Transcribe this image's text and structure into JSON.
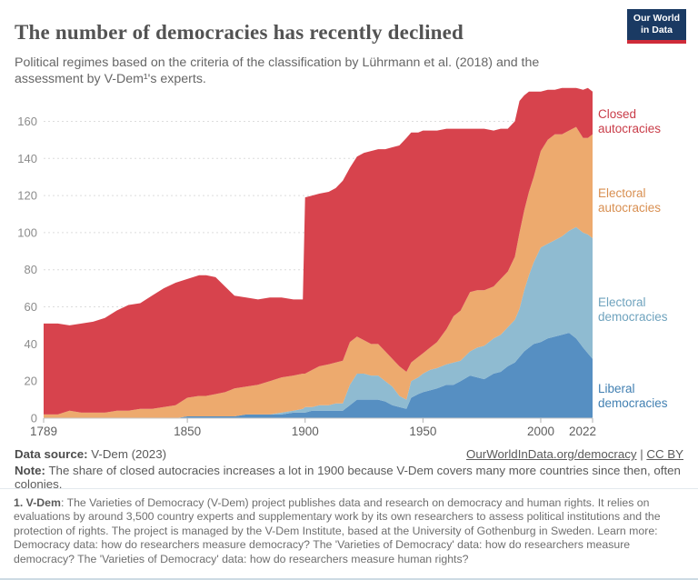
{
  "header": {
    "title": "The number of democracies has recently declined",
    "subtitle": "Political regimes based on the criteria of the classification by Lührmann et al. (2018) and the assessment by V-Dem¹'s experts.",
    "logo": {
      "line1": "Our World",
      "line2": "in Data"
    }
  },
  "chart_data": {
    "type": "area",
    "stacked": true,
    "title": "The number of democracies has recently declined",
    "xlabel": "",
    "ylabel": "",
    "grid": "dashed-horizontal",
    "legend_position": "right-edge-labels",
    "xticks": [
      1789,
      1850,
      1900,
      1950,
      2000,
      2022
    ],
    "yticks": [
      0,
      20,
      40,
      60,
      80,
      100,
      120,
      140,
      160
    ],
    "xlim": [
      1789,
      2022
    ],
    "ylim": [
      0,
      178
    ],
    "x": [
      1789,
      1795,
      1800,
      1805,
      1810,
      1815,
      1820,
      1825,
      1830,
      1835,
      1840,
      1845,
      1850,
      1855,
      1858,
      1862,
      1866,
      1870,
      1875,
      1880,
      1885,
      1890,
      1895,
      1899,
      1900,
      1903,
      1906,
      1910,
      1913,
      1916,
      1919,
      1922,
      1925,
      1928,
      1931,
      1934,
      1937,
      1940,
      1943,
      1945,
      1948,
      1950,
      1953,
      1956,
      1960,
      1963,
      1966,
      1970,
      1973,
      1976,
      1980,
      1983,
      1986,
      1989,
      1991,
      1993,
      1995,
      1997,
      2000,
      2003,
      2006,
      2009,
      2012,
      2015,
      2018,
      2020,
      2022
    ],
    "series": [
      {
        "name": "Liberal democracies",
        "label_lines": [
          "Liberal",
          "democracies"
        ],
        "color": "#568fc2",
        "label_color": "#4280b2",
        "values": [
          0,
          0,
          0,
          0,
          0,
          0,
          0,
          0,
          0,
          0,
          0,
          0,
          1,
          1,
          1,
          1,
          1,
          1,
          2,
          2,
          2,
          2,
          3,
          3,
          3,
          4,
          4,
          4,
          4,
          4,
          7,
          10,
          10,
          10,
          10,
          9,
          7,
          6,
          5,
          11,
          13,
          14,
          15,
          16,
          18,
          18,
          20,
          23,
          22,
          21,
          24,
          25,
          28,
          30,
          33,
          36,
          38,
          40,
          41,
          43,
          44,
          45,
          46,
          43,
          38,
          35,
          32
        ]
      },
      {
        "name": "Electoral democracies",
        "label_lines": [
          "Electoral",
          "democracies"
        ],
        "color": "#8fbbd1",
        "label_color": "#6fa3be",
        "values": [
          0,
          0,
          0,
          0,
          0,
          0,
          0,
          0,
          0,
          0,
          0,
          0,
          0,
          0,
          0,
          0,
          0,
          0,
          0,
          0,
          0,
          1,
          1,
          2,
          3,
          2,
          3,
          3,
          4,
          4,
          11,
          14,
          14,
          13,
          13,
          11,
          10,
          6,
          5,
          9,
          9,
          10,
          11,
          11,
          11,
          12,
          11,
          13,
          16,
          18,
          19,
          20,
          21,
          23,
          26,
          33,
          39,
          44,
          51,
          51,
          52,
          53,
          55,
          60,
          62,
          64,
          65
        ]
      },
      {
        "name": "Electoral autocracies",
        "label_lines": [
          "Electoral",
          "autocracies"
        ],
        "color": "#edaa6e",
        "label_color": "#d88f51",
        "values": [
          2,
          2,
          4,
          3,
          3,
          3,
          4,
          4,
          5,
          5,
          6,
          7,
          10,
          11,
          11,
          12,
          13,
          15,
          15,
          16,
          18,
          19,
          19,
          19,
          18,
          20,
          21,
          22,
          22,
          23,
          23,
          20,
          18,
          17,
          17,
          16,
          15,
          16,
          15,
          10,
          11,
          11,
          12,
          14,
          19,
          25,
          27,
          32,
          31,
          30,
          28,
          30,
          30,
          34,
          41,
          43,
          45,
          46,
          52,
          56,
          57,
          55,
          54,
          54,
          51,
          52,
          56
        ]
      },
      {
        "name": "Closed autocracies",
        "label_lines": [
          "Closed",
          "autocracies"
        ],
        "color": "#d7434d",
        "label_color": "#c93c48",
        "values": [
          49,
          49,
          46,
          48,
          49,
          51,
          54,
          57,
          57,
          61,
          64,
          66,
          64,
          65,
          65,
          63,
          57,
          50,
          48,
          46,
          45,
          43,
          41,
          40,
          95,
          94,
          93,
          93,
          94,
          97,
          94,
          97,
          101,
          104,
          105,
          109,
          114,
          119,
          126,
          124,
          121,
          120,
          117,
          114,
          108,
          101,
          98,
          88,
          87,
          87,
          84,
          81,
          77,
          73,
          71,
          62,
          54,
          46,
          32,
          27,
          24,
          25,
          23,
          21,
          26,
          27,
          23
        ]
      }
    ]
  },
  "footer": {
    "source_label": "Data source:",
    "source_text": " V-Dem (2023)",
    "link_primary": "OurWorldInData.org/democracy",
    "link_separator": " | ",
    "link_license": "CC BY",
    "note_label": "Note:",
    "note_text": " The share of closed autocracies increases a lot in 1900 because V-Dem covers many more countries since then, often colonies."
  },
  "footnote": {
    "label": "1. V-Dem",
    "text": ": The Varieties of Democracy (V-Dem) project publishes data and research on democracy and human rights. It relies on evaluations by around 3,500 country experts and supplementary work by its own researchers to assess political institutions and the protection of rights. The project is managed by the V-Dem Institute, based at the University of Gothenburg in Sweden. Learn more: Democracy data: how do researchers measure democracy? The 'Varieties of Democracy' data: how do researchers measure democracy? The 'Varieties of Democracy' data: how do researchers measure human rights?"
  }
}
